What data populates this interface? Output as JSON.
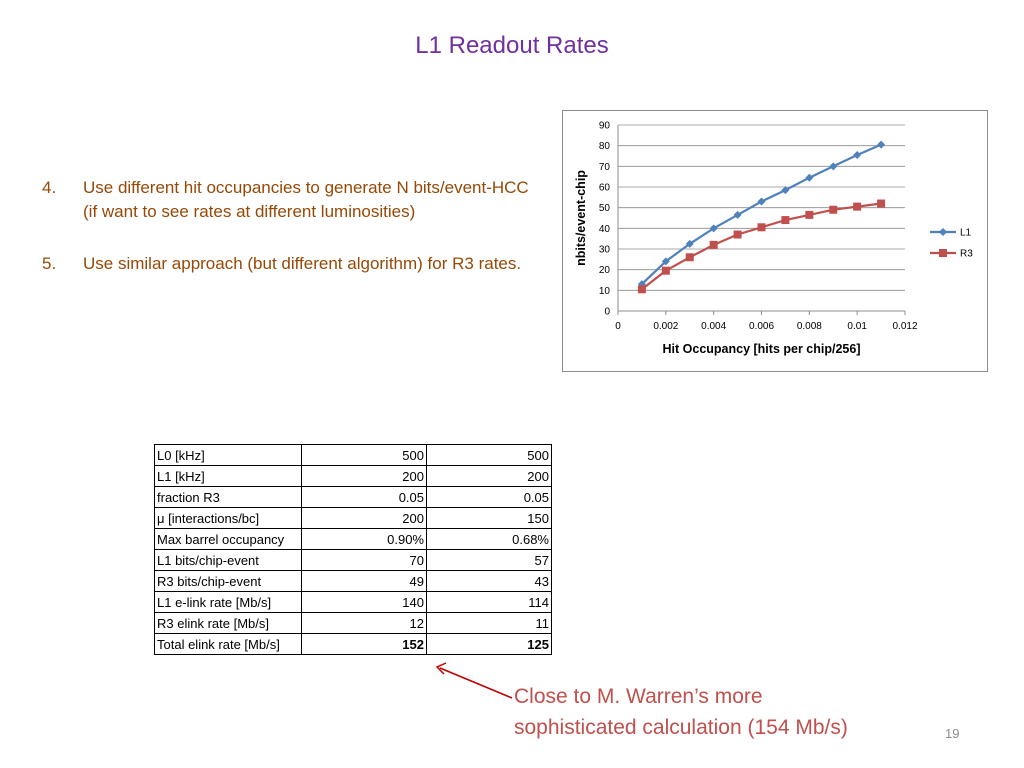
{
  "slide": {
    "title": "L1 Readout Rates",
    "page_number": "19"
  },
  "bullets": [
    {
      "number": "4.",
      "text": "Use different hit occupancies to generate N bits/event-HCC (if want to see rates at different luminosities)"
    },
    {
      "number": "5.",
      "text": "Use similar approach (but different algorithm) for R3 rates."
    }
  ],
  "table": {
    "rows": [
      {
        "label": "L0 [kHz]",
        "v1": "500",
        "v2": "500",
        "bold": false
      },
      {
        "label": "L1 [kHz]",
        "v1": "200",
        "v2": "200",
        "bold": false
      },
      {
        "label": "fraction R3",
        "v1": "0.05",
        "v2": "0.05",
        "bold": false
      },
      {
        "label": "μ [interactions/bc]",
        "v1": "200",
        "v2": "150",
        "bold": false
      },
      {
        "label": "Max barrel occupancy",
        "v1": "0.90%",
        "v2": "0.68%",
        "bold": false
      },
      {
        "label": "L1 bits/chip-event",
        "v1": "70",
        "v2": "57",
        "bold": false
      },
      {
        "label": "R3 bits/chip-event",
        "v1": "49",
        "v2": "43",
        "bold": false
      },
      {
        "label": "L1 e-link rate [Mb/s]",
        "v1": "140",
        "v2": "114",
        "bold": false
      },
      {
        "label": "R3 elink rate [Mb/s]",
        "v1": "12",
        "v2": "11",
        "bold": false
      },
      {
        "label": "Total elink rate [Mb/s]",
        "v1": "152",
        "v2": "125",
        "bold": true
      }
    ]
  },
  "note": {
    "line1": "Close to M. Warren’s more",
    "line2": "sophisticated calculation (154 Mb/s)"
  },
  "colors": {
    "title": "#7030a0",
    "bullets": "#984806",
    "note": "#c0504d",
    "l1_series": "#4f81bd",
    "r3_series": "#c0504d"
  },
  "chart_data": {
    "type": "line",
    "title": "",
    "xlabel": "Hit Occupancy [hits per chip/256]",
    "ylabel": "nbits/event-chip",
    "xlim": [
      0,
      0.012
    ],
    "ylim": [
      0,
      90
    ],
    "x_ticks": [
      "0",
      "0.002",
      "0.004",
      "0.006",
      "0.008",
      "0.01",
      "0.012"
    ],
    "y_ticks": [
      "0",
      "10",
      "20",
      "30",
      "40",
      "50",
      "60",
      "70",
      "80",
      "90"
    ],
    "grid": "horizontal",
    "legend_position": "right",
    "series": [
      {
        "name": "L1",
        "marker": "diamond",
        "x": [
          0.001,
          0.002,
          0.003,
          0.004,
          0.005,
          0.006,
          0.007,
          0.008,
          0.009,
          0.01,
          0.011
        ],
        "y": [
          13,
          24,
          32.5,
          40,
          46.5,
          53,
          58.5,
          64.5,
          70,
          75.5,
          80.5
        ]
      },
      {
        "name": "R3",
        "marker": "square",
        "x": [
          0.001,
          0.002,
          0.003,
          0.004,
          0.005,
          0.006,
          0.007,
          0.008,
          0.009,
          0.01,
          0.011
        ],
        "y": [
          10.5,
          19.5,
          26,
          32,
          37,
          40.5,
          44,
          46.5,
          49,
          50.5,
          52
        ]
      }
    ]
  }
}
